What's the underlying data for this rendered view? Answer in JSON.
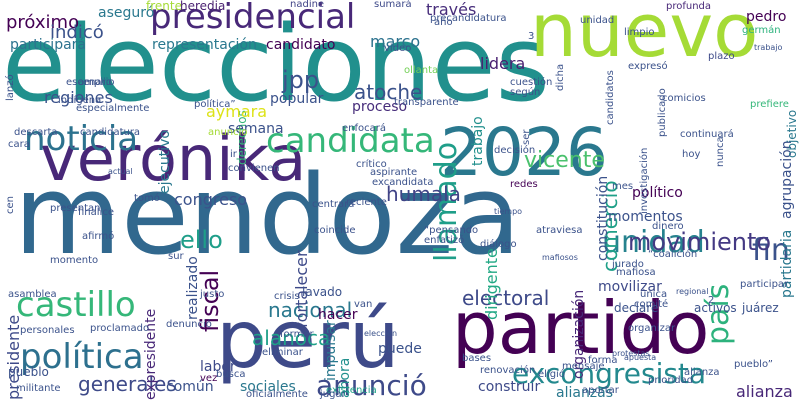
{
  "words": [
    {
      "text": "elecciones",
      "color": "#21908d"
    },
    {
      "text": "mendoza",
      "color": "#31688e"
    },
    {
      "text": "verónika",
      "color": "#482878"
    },
    {
      "text": "partido",
      "color": "#440154"
    },
    {
      "text": "perú",
      "color": "#3e4a89"
    },
    {
      "text": "nuevo",
      "color": "#a5db36"
    },
    {
      "text": "2026",
      "color": "#2a788e"
    },
    {
      "text": "presidencial",
      "color": "#482878"
    },
    {
      "text": "candidata",
      "color": "#35b779"
    },
    {
      "text": "noticia",
      "color": "#2c728e"
    },
    {
      "text": "política",
      "color": "#2d708e"
    },
    {
      "text": "castillo",
      "color": "#35b779"
    },
    {
      "text": "excongresista",
      "color": "#23898e"
    },
    {
      "text": "unidad",
      "color": "#26828e"
    },
    {
      "text": "anunció",
      "color": "#3e4a89"
    },
    {
      "text": "país",
      "color": "#2db27d"
    },
    {
      "text": "comercio",
      "color": "#1fa088"
    },
    {
      "text": "llamado",
      "color": "#1f9e89"
    },
    {
      "text": "humala",
      "color": "#414487"
    },
    {
      "text": "vicente",
      "color": "#4ac16d"
    },
    {
      "text": "fin",
      "color": "#3b528b"
    },
    {
      "text": "movimiento",
      "color": "#443983"
    },
    {
      "text": "nacional",
      "color": "#2a788e"
    },
    {
      "text": "electoral",
      "color": "#3e4a89"
    },
    {
      "text": "alanoca",
      "color": "#1fa088"
    },
    {
      "text": "generales",
      "color": "#3e4a89"
    },
    {
      "text": "atoche",
      "color": "#3b528b"
    },
    {
      "text": "jpp",
      "color": "#3b528b"
    },
    {
      "text": "fiscal",
      "color": "#440154"
    },
    {
      "text": "ello",
      "color": "#1f9e89"
    },
    {
      "text": "constitución",
      "color": "#3b528b"
    },
    {
      "text": "trabajo",
      "color": "#21908d"
    },
    {
      "text": "partidaria",
      "color": "#2a788e"
    },
    {
      "text": "agrupación",
      "color": "#3b528b"
    },
    {
      "text": "proceso",
      "color": "#472d7b"
    },
    {
      "text": "popular",
      "color": "#3b528b"
    },
    {
      "text": "lidera",
      "color": "#481f70"
    },
    {
      "text": "marco",
      "color": "#2c728e"
    },
    {
      "text": "candidato",
      "color": "#440154"
    },
    {
      "text": "representación",
      "color": "#2a788e"
    },
    {
      "text": "derechos",
      "color": "#35b779"
    },
    {
      "text": "regiones",
      "color": "#3b528b"
    },
    {
      "text": "participará",
      "color": "#2c728e"
    },
    {
      "text": "próximo",
      "color": "#440154"
    },
    {
      "text": "indicó",
      "color": "#3b528b"
    },
    {
      "text": "aseguró",
      "color": "#2a788e"
    },
    {
      "text": "través",
      "color": "#472d7b"
    },
    {
      "text": "frente",
      "color": "#a5db36"
    },
    {
      "text": "heredia",
      "color": "#481f70"
    },
    {
      "text": "nadine",
      "color": "#414487"
    },
    {
      "text": "sumará",
      "color": "#3e4a89"
    },
    {
      "text": "pedro",
      "color": "#440154"
    },
    {
      "text": "germán",
      "color": "#2db27d"
    },
    {
      "text": "trabajo",
      "color": "#3b528b"
    },
    {
      "text": "plazo",
      "color": "#3e4a89"
    },
    {
      "text": "profunda",
      "color": "#482878"
    },
    {
      "text": "objetivo",
      "color": "#2a788e"
    },
    {
      "text": "prefiere",
      "color": "#35b779"
    },
    {
      "text": "comicios",
      "color": "#3b528b"
    },
    {
      "text": "aymara",
      "color": "#dde318"
    },
    {
      "text": "semana",
      "color": "#3b528b"
    },
    {
      "text": "ejecutivo",
      "color": "#2a788e"
    },
    {
      "text": "amplio",
      "color": "#3b528b"
    },
    {
      "text": "indígena",
      "color": "#3b528b"
    },
    {
      "text": "ollanta",
      "color": "#73d056"
    },
    {
      "text": "congreso",
      "color": "#3b528b"
    },
    {
      "text": "momentos",
      "color": "#3b528b"
    },
    {
      "text": "político",
      "color": "#440154"
    },
    {
      "text": "dirigente",
      "color": "#22a884"
    },
    {
      "text": "organización",
      "color": "#482878"
    },
    {
      "text": "fortalecer",
      "color": "#3e4a89"
    },
    {
      "text": "realizado",
      "color": "#3b528b"
    },
    {
      "text": "impulsar",
      "color": "#2a788e"
    },
    {
      "text": "lavado",
      "color": "#3b528b"
    },
    {
      "text": "hacer",
      "color": "#440154"
    },
    {
      "text": "expresidente",
      "color": "#482878"
    },
    {
      "text": "presidente",
      "color": "#3e4a89"
    },
    {
      "text": "momento",
      "color": "#3b528b"
    },
    {
      "text": "movilizar",
      "color": "#3e4a89"
    },
    {
      "text": "declare",
      "color": "#3b528b"
    },
    {
      "text": "labor",
      "color": "#3e4a89"
    },
    {
      "text": "pueblo",
      "color": "#3b528b"
    },
    {
      "text": "común",
      "color": "#3b528b"
    },
    {
      "text": "sociales",
      "color": "#2a788e"
    },
    {
      "text": "ahora",
      "color": "#21908d"
    },
    {
      "text": "puede",
      "color": "#3b528b"
    },
    {
      "text": "construir",
      "color": "#3e4a89"
    },
    {
      "text": "alianzas",
      "color": "#2a788e"
    },
    {
      "text": "alianza",
      "color": "#482878"
    },
    {
      "text": "activos",
      "color": "#3b528b"
    },
    {
      "text": "juárez",
      "color": "#3b528b"
    },
    {
      "text": "regional",
      "color": "#3b528b"
    },
    {
      "text": "jurado",
      "color": "#3b528b"
    },
    {
      "text": "dinero",
      "color": "#3b528b"
    },
    {
      "text": "investigación",
      "color": "#3b528b"
    },
    {
      "text": "redes",
      "color": "#440154"
    },
    {
      "text": "excandidata",
      "color": "#3b528b"
    },
    {
      "text": "aspirante",
      "color": "#3b528b"
    },
    {
      "text": "reciente",
      "color": "#3b528b"
    },
    {
      "text": "crítico",
      "color": "#3b528b"
    },
    {
      "text": "enfocará",
      "color": "#3b528b"
    },
    {
      "text": "anuncio",
      "color": "#a5db36"
    },
    {
      "text": "crisis",
      "color": "#3b528b"
    },
    {
      "text": "elección",
      "color": "#3b528b"
    },
    {
      "text": "protestas",
      "color": "#3b528b"
    },
    {
      "text": "existencia",
      "color": "#1fa088"
    },
    {
      "text": "oficialmente",
      "color": "#3b528b"
    },
    {
      "text": "jugar",
      "color": "#3b528b"
    },
    {
      "text": "aportar",
      "color": "#3b528b"
    },
    {
      "text": "prioridad",
      "color": "#3b528b"
    },
    {
      "text": "eligió",
      "color": "#3b528b"
    },
    {
      "text": "militante",
      "color": "#3b528b"
    },
    {
      "text": "busca",
      "color": "#3b528b"
    },
    {
      "text": "vez",
      "color": "#440154"
    },
    {
      "text": "eliminar",
      "color": "#3b528b"
    },
    {
      "text": "organizar",
      "color": "#3b528b"
    },
    {
      "text": "forma",
      "color": "#3b528b"
    },
    {
      "text": "apuesta",
      "color": "#3b528b"
    },
    {
      "text": "diálogo",
      "color": "#3b528b"
    },
    {
      "text": "tiempo",
      "color": "#3b528b"
    },
    {
      "text": "atraviesa",
      "color": "#3b528b"
    },
    {
      "text": "mafiosos",
      "color": "#3b528b"
    },
    {
      "text": "coincide",
      "color": "#3b528b"
    },
    {
      "text": "centrará",
      "color": "#3b528b"
    },
    {
      "text": "tomó",
      "color": "#3b528b"
    },
    {
      "text": "actual",
      "color": "#3b528b"
    },
    {
      "text": "presentan",
      "color": "#3b528b"
    },
    {
      "text": "finalice",
      "color": "#3b528b"
    },
    {
      "text": "sur",
      "color": "#3b528b"
    },
    {
      "text": "afirmó",
      "color": "#3b528b"
    },
    {
      "text": "justo",
      "color": "#3b528b"
    },
    {
      "text": "formar",
      "color": "#3b528b"
    },
    {
      "text": "van",
      "color": "#3b528b"
    },
    {
      "text": "proclamado",
      "color": "#3b528b"
    },
    {
      "text": "denunció",
      "color": "#3b528b"
    },
    {
      "text": "personales",
      "color": "#3b528b"
    },
    {
      "text": "asamblea",
      "color": "#3b528b"
    },
    {
      "text": "candidatura",
      "color": "#3b528b"
    },
    {
      "text": "descarta",
      "color": "#3b528b"
    },
    {
      "text": "cara",
      "color": "#3b528b"
    },
    {
      "text": "cen",
      "color": "#3b528b"
    },
    {
      "text": "lanzó",
      "color": "#3b528b"
    },
    {
      "text": "especialmente",
      "color": "#3b528b"
    },
    {
      "text": "escenario",
      "color": "#3b528b"
    },
    {
      "text": "video",
      "color": "#3b528b"
    },
    {
      "text": "transparente",
      "color": "#3b528b"
    },
    {
      "text": "cuestión",
      "color": "#3b528b"
    },
    {
      "text": "según",
      "color": "#3b528b"
    },
    {
      "text": "expresó",
      "color": "#3b528b"
    },
    {
      "text": "dicha",
      "color": "#3b528b"
    },
    {
      "text": "candidatos",
      "color": "#3b528b"
    },
    {
      "text": "publicado",
      "color": "#3b528b"
    },
    {
      "text": "continuará",
      "color": "#3b528b"
    },
    {
      "text": "hoy",
      "color": "#3b528b"
    },
    {
      "text": "ser",
      "color": "#3b528b"
    },
    {
      "text": "nunca",
      "color": "#3b528b"
    },
    {
      "text": "decisión",
      "color": "#3b528b"
    },
    {
      "text": "ir",
      "color": "#3b528b"
    },
    {
      "text": "convienen",
      "color": "#3b528b"
    },
    {
      "text": "mes",
      "color": "#3b528b"
    },
    {
      "text": "bases",
      "color": "#3b528b"
    },
    {
      "text": "renovación",
      "color": "#3b528b"
    },
    {
      "text": "mensaje",
      "color": "#3b528b"
    },
    {
      "text": "participar",
      "color": "#3b528b"
    },
    {
      "text": "comité",
      "color": "#3b528b"
    },
    {
      "text": "única",
      "color": "#3b528b"
    },
    {
      "text": "precandidatura",
      "color": "#3b528b"
    },
    {
      "text": "año",
      "color": "#3b528b"
    },
    {
      "text": "limpio",
      "color": "#3b528b"
    },
    {
      "text": "unidad",
      "color": "#3b528b"
    },
    {
      "text": "2",
      "color": "#3b528b"
    },
    {
      "text": "3",
      "color": "#3b528b"
    },
    {
      "text": "“pensando",
      "color": "#3b528b"
    },
    {
      "text": "enfatizó",
      "color": "#3b528b"
    },
    {
      "text": "alianza",
      "color": "#3b528b"
    },
    {
      "text": "“coalición",
      "color": "#3b528b"
    },
    {
      "text": "mafiosa",
      "color": "#3b528b"
    },
    {
      "text": "pueblo”",
      "color": "#3b528b"
    },
    {
      "text": "política”",
      "color": "#3b528b"
    },
    {
      "text": "eprime",
      "color": "#3b528b"
    }
  ]
}
